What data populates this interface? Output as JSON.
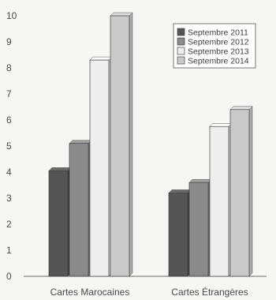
{
  "chart_data": {
    "type": "bar",
    "categories": [
      "Cartes Marocaines",
      "Cartes Étrangères"
    ],
    "series": [
      {
        "name": "Septembre 2011",
        "values": [
          4.05,
          3.2
        ],
        "color": "#555555"
      },
      {
        "name": "Septembre 2012",
        "values": [
          5.1,
          3.6
        ],
        "color": "#8a8a8a"
      },
      {
        "name": "Septembre 2013",
        "values": [
          8.3,
          5.75
        ],
        "color": "#eeeeee"
      },
      {
        "name": "Septembre 2014",
        "values": [
          10.0,
          6.4
        ],
        "color": "#c9c9c9"
      }
    ],
    "y_ticks": [
      "0",
      "1",
      "2",
      "3",
      "4",
      "5",
      "6",
      "7",
      "8",
      "9",
      "10"
    ],
    "ylim": [
      0,
      10
    ],
    "grid": false,
    "legend_position": "top-right"
  }
}
